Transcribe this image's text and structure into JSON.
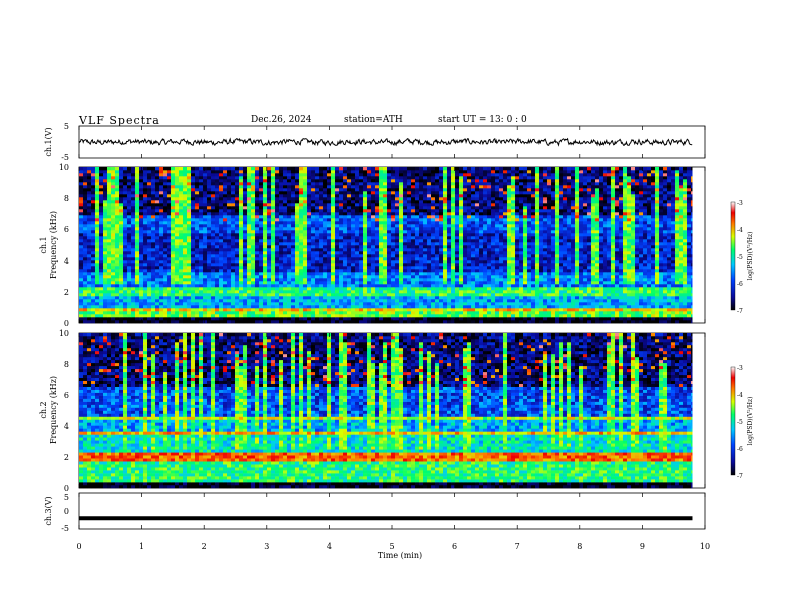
{
  "header": {
    "title": "VLF  Spectra",
    "date": "Dec.26, 2024",
    "station": "station=ATH",
    "start_ut": "start  UT  =    13: 0   : 0"
  },
  "colors": {
    "spectrogram_colormap": [
      "#000000",
      "#0a0a9a",
      "#0044ff",
      "#00c8ff",
      "#00ff6a",
      "#d8ff00",
      "#ff7a00",
      "#ee0000",
      "#ffffff"
    ],
    "waveform": "#000000"
  },
  "chart_data": [
    {
      "type": "line",
      "panel": "ch1-waveform",
      "ylabel": "ch.1(V)",
      "ylim": [
        -5,
        5
      ],
      "yticks": [
        "5",
        "-5"
      ],
      "xlim": [
        0,
        10
      ],
      "series": [
        {
          "x": [
            0,
            9.8
          ],
          "y": [
            0.0,
            0.0
          ]
        }
      ],
      "note_values": "waveform fluctuates roughly between -0.9 and +0.9 V around 0 V from 0 to 9.8 min"
    },
    {
      "type": "heatmap",
      "panel": "ch1-spectrogram",
      "ylabel": "ch.1\nFrequency (kHz)",
      "ylim": [
        0,
        10
      ],
      "yticks": [
        "0",
        "2",
        "4",
        "6",
        "8",
        "10"
      ],
      "xlim": [
        0,
        9.8
      ],
      "colorbar": {
        "label": "log(PSD)(V²/Hz)",
        "range": [
          -7,
          -3
        ],
        "ticks": [
          "-3",
          "-4",
          "-5",
          "-6",
          "-7"
        ]
      },
      "bands_khz_logpsd": [
        {
          "f": [
            0,
            0.3
          ],
          "v": -7
        },
        {
          "f": [
            0.3,
            0.8
          ],
          "v": -4.8
        },
        {
          "f": [
            0.8,
            1.0
          ],
          "v": -4.3
        },
        {
          "f": [
            1.0,
            1.8
          ],
          "v": -5.6
        },
        {
          "f": [
            1.8,
            2.4
          ],
          "v": -5.0
        },
        {
          "f": [
            2.4,
            3.3
          ],
          "v": -5.8
        },
        {
          "f": [
            3.3,
            5.8
          ],
          "v": -6.3
        },
        {
          "f": [
            5.8,
            7.0
          ],
          "v": -6.0
        },
        {
          "f": [
            7.0,
            10.0
          ],
          "v": -6.6
        }
      ]
    },
    {
      "type": "heatmap",
      "panel": "ch2-spectrogram",
      "ylabel": "ch.2\nFrequency (kHz)",
      "ylim": [
        0,
        10
      ],
      "yticks": [
        "0",
        "2",
        "4",
        "6",
        "8",
        "10"
      ],
      "xlim": [
        0,
        9.8
      ],
      "colorbar": {
        "label": "log(PSD)(V²/Hz)",
        "range": [
          -7,
          -3
        ],
        "ticks": [
          "-3",
          "-4",
          "-5",
          "-6",
          "-7"
        ]
      },
      "bands_khz_logpsd": [
        {
          "f": [
            0,
            0.3
          ],
          "v": -7
        },
        {
          "f": [
            0.3,
            1.8
          ],
          "v": -5.0
        },
        {
          "f": [
            1.8,
            2.3
          ],
          "v": -3.9
        },
        {
          "f": [
            2.3,
            3.4
          ],
          "v": -5.3
        },
        {
          "f": [
            3.4,
            3.7
          ],
          "v": -4.2
        },
        {
          "f": [
            3.7,
            4.5
          ],
          "v": -5.6
        },
        {
          "f": [
            4.5,
            4.7
          ],
          "v": -4.6
        },
        {
          "f": [
            4.7,
            6.5
          ],
          "v": -6.0
        },
        {
          "f": [
            6.5,
            10.0
          ],
          "v": -6.6
        }
      ]
    },
    {
      "type": "line",
      "panel": "ch3-waveform",
      "ylabel": "ch.3(V)",
      "ylim": [
        -5,
        5
      ],
      "yticks": [
        "5",
        "0",
        "-5"
      ],
      "xlim": [
        0,
        10
      ],
      "series": [
        {
          "x": [
            0,
            9.8
          ],
          "y": [
            -2.0,
            -2.0
          ]
        }
      ]
    }
  ],
  "xaxis": {
    "label": "Time  (min)",
    "ticks": [
      "0",
      "1",
      "2",
      "3",
      "4",
      "5",
      "6",
      "7",
      "8",
      "9",
      "10"
    ]
  }
}
